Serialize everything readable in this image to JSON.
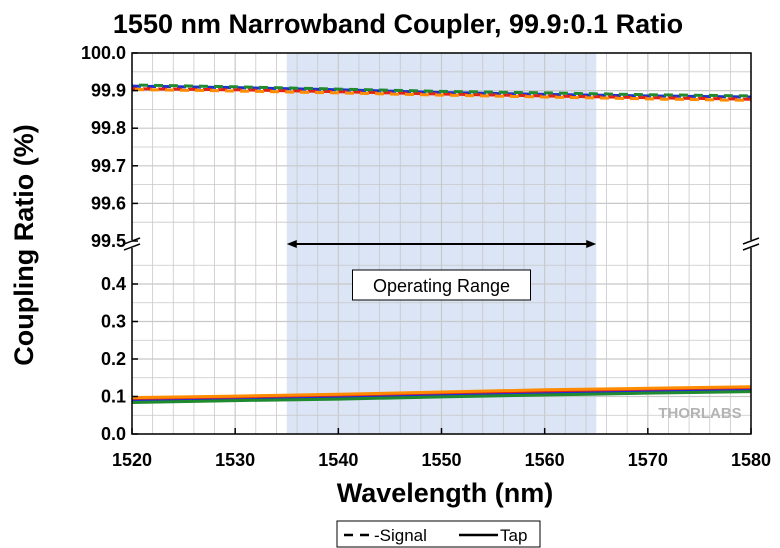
{
  "chart_data": {
    "type": "line",
    "title": "1550 nm Narrowband Coupler, 99.9:0.1 Ratio",
    "xlabel": "Wavelength (nm)",
    "ylabel": "Coupling Ratio (%)",
    "xlim": [
      1520,
      1580
    ],
    "x_ticks": [
      1520,
      1530,
      1540,
      1550,
      1560,
      1570,
      1580
    ],
    "y_upper": {
      "ylim": [
        99.5,
        100.0
      ],
      "ticks": [
        "99.5",
        "99.6",
        "99.7",
        "99.8",
        "99.9",
        "100.0"
      ]
    },
    "y_lower": {
      "ylim": [
        0.0,
        0.5
      ],
      "ticks": [
        "0.0",
        "0.1",
        "0.2",
        "0.3",
        "0.4"
      ]
    },
    "grid": true,
    "shaded_region": {
      "x": [
        1535,
        1565
      ],
      "color": "#dbe5f6"
    },
    "annotation": {
      "text": "Operating Range",
      "x": [
        1535,
        1565
      ]
    },
    "legend": {
      "placement": "bottom-center",
      "entries": [
        "Signal",
        "Tap"
      ]
    },
    "colors": {
      "blue": "#1f2fd6",
      "red": "#e2231a",
      "green": "#1f8a2e",
      "orange": "#ff8c00",
      "black": "#000000"
    },
    "series": [
      {
        "role": "Signal",
        "color": "#1f2fd6",
        "x": [
          1520,
          1530,
          1540,
          1550,
          1560,
          1570,
          1580
        ],
        "values": [
          99.912,
          99.908,
          99.902,
          99.895,
          99.89,
          99.886,
          99.883
        ]
      },
      {
        "role": "Signal",
        "color": "#e2231a",
        "x": [
          1520,
          1530,
          1540,
          1550,
          1560,
          1570,
          1580
        ],
        "values": [
          99.905,
          99.902,
          99.897,
          99.891,
          99.886,
          99.881,
          99.877
        ]
      },
      {
        "role": "Signal",
        "color": "#1f8a2e",
        "x": [
          1520,
          1530,
          1540,
          1550,
          1560,
          1570,
          1580
        ],
        "values": [
          99.915,
          99.91,
          99.904,
          99.898,
          99.894,
          99.889,
          99.886
        ]
      },
      {
        "role": "Signal",
        "color": "#ff8c00",
        "x": [
          1520,
          1530,
          1540,
          1550,
          1560,
          1570,
          1580
        ],
        "values": [
          99.903,
          99.899,
          99.894,
          99.888,
          99.883,
          99.878,
          99.874
        ]
      },
      {
        "role": "Tap",
        "color": "#1f2fd6",
        "x": [
          1520,
          1530,
          1540,
          1550,
          1560,
          1570,
          1580
        ],
        "values": [
          0.088,
          0.092,
          0.097,
          0.103,
          0.109,
          0.114,
          0.118
        ]
      },
      {
        "role": "Tap",
        "color": "#e2231a",
        "x": [
          1520,
          1530,
          1540,
          1550,
          1560,
          1570,
          1580
        ],
        "values": [
          0.095,
          0.099,
          0.104,
          0.11,
          0.115,
          0.12,
          0.124
        ]
      },
      {
        "role": "Tap",
        "color": "#1f8a2e",
        "x": [
          1520,
          1530,
          1540,
          1550,
          1560,
          1570,
          1580
        ],
        "values": [
          0.084,
          0.089,
          0.093,
          0.099,
          0.104,
          0.109,
          0.113
        ]
      },
      {
        "role": "Tap",
        "color": "#ff8c00",
        "x": [
          1520,
          1530,
          1540,
          1550,
          1560,
          1570,
          1580
        ],
        "values": [
          0.097,
          0.101,
          0.106,
          0.112,
          0.118,
          0.122,
          0.126
        ]
      }
    ]
  },
  "watermark": "THORLABS"
}
